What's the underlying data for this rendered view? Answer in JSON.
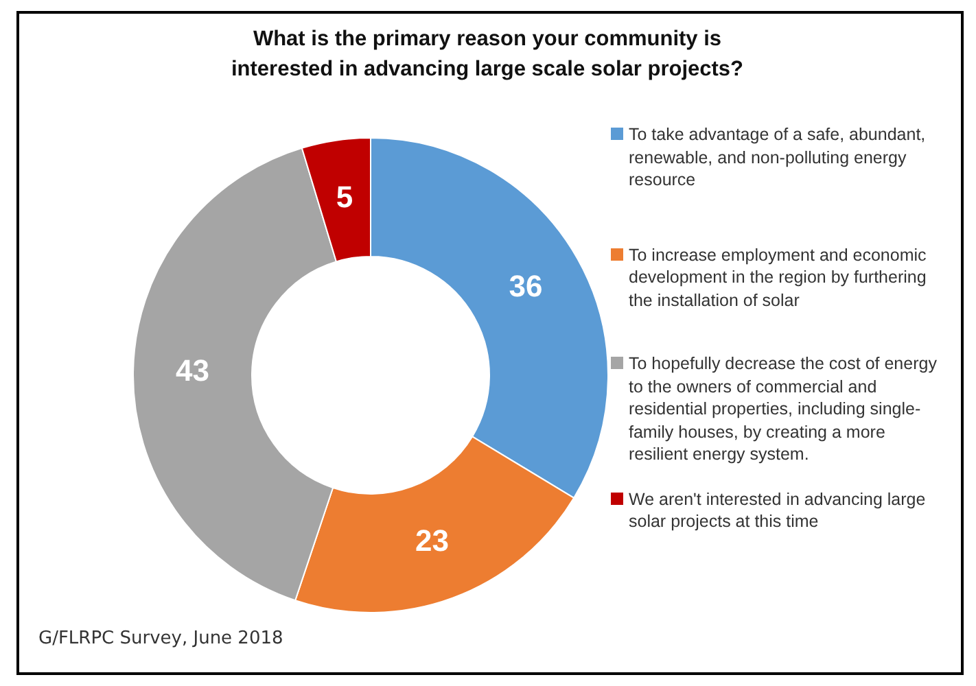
{
  "chart_data": {
    "type": "donut",
    "title": "What is the primary reason your community is interested in advancing large scale solar projects?",
    "categories": [
      "To take advantage of a safe, abundant, renewable, and non-polluting energy resource",
      "To increase employment and economic development in the region by furthering the installation of solar",
      "To hopefully decrease  the cost of energy to the owners of commercial and residential properties, including single-family houses, by creating a more resilient energy system.",
      "We aren't interested in advancing large solar projects at this time"
    ],
    "values": [
      36,
      23,
      43,
      5
    ],
    "colors": [
      "#5b9bd5",
      "#ed7d31",
      "#a5a5a5",
      "#c00000"
    ],
    "data_labels": true,
    "legend": "right",
    "annotations": [
      "G/FLRPC Survey, June 2018"
    ]
  }
}
